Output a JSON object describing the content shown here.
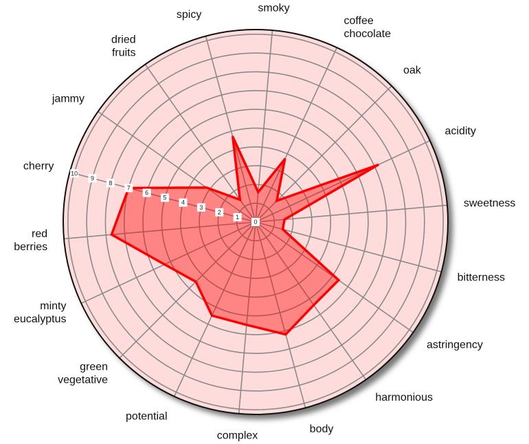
{
  "chart_data": {
    "type": "radar",
    "categories": [
      [
        "spicy"
      ],
      [
        "smoky"
      ],
      [
        "coffee",
        "chocolate"
      ],
      [
        "oak"
      ],
      [
        "acidity"
      ],
      [
        "sweetness"
      ],
      [
        "bitterness"
      ],
      [
        "astringency"
      ],
      [
        "harmonious"
      ],
      [
        "body"
      ],
      [
        "complex"
      ],
      [
        "potential"
      ],
      [
        "green",
        "vegetative"
      ],
      [
        "minty",
        "eucalyptus"
      ],
      [
        "red",
        "berries"
      ],
      [
        "cherry"
      ],
      [
        "jammy"
      ],
      [
        "dried",
        "fruits"
      ]
    ],
    "values": [
      4.7,
      1.6,
      3.7,
      1.6,
      7.2,
      1.55,
      1.5,
      5.4,
      5.4,
      6.2,
      5.5,
      5.5,
      4.5,
      5.35,
      7.7,
      7.0,
      3.2,
      1.45
    ],
    "color": "#ff0000",
    "ylim": [
      0,
      10.25
    ],
    "yticks": [
      0,
      1,
      2,
      3,
      4,
      5,
      6,
      7,
      8,
      9,
      10
    ],
    "grid": true
  }
}
